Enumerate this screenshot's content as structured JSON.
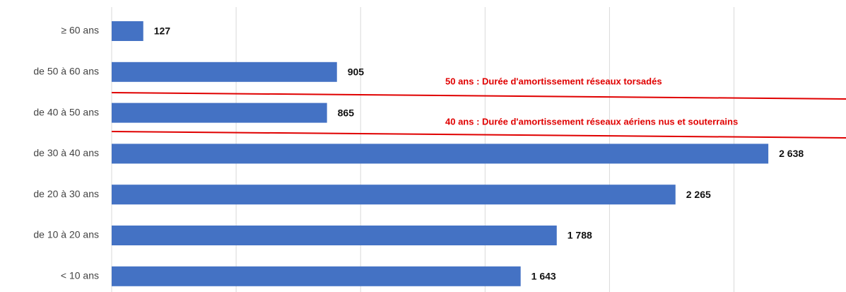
{
  "chart_data": {
    "type": "bar",
    "orientation": "horizontal",
    "categories": [
      "≥ 60 ans",
      "de 50 à 60 ans",
      "de 40 à 50 ans",
      "de 30 à 40 ans",
      "de 20 à 30 ans",
      "de 10 à 20 ans",
      "< 10 ans"
    ],
    "values": [
      127,
      905,
      865,
      2638,
      2265,
      1788,
      1643
    ],
    "value_labels": [
      "127",
      "905",
      "865",
      "2 638",
      "2 265",
      "1 788",
      "1 643"
    ],
    "color": "#4472c4",
    "xlim": [
      0,
      2950
    ],
    "xticks": [
      0,
      500,
      1000,
      1500,
      2000,
      2500
    ],
    "grid": true,
    "annotations": [
      "50 ans : Durée d'amortissement réseaux torsadés",
      "40 ans : Durée d'amortissement réseaux aériens nus et souterrains"
    ],
    "annotation_color": "#e00000"
  }
}
